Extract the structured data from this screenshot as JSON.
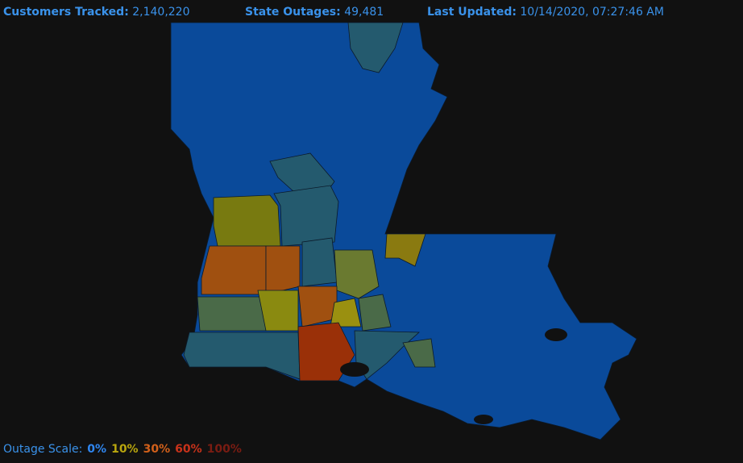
{
  "header": {
    "customers_tracked": {
      "label": "Customers Tracked:",
      "value": "2,140,220"
    },
    "state_outages": {
      "label": "State Outages:",
      "value": "49,481"
    },
    "last_updated": {
      "label": "Last Updated:",
      "value": "10/14/2020, 07:27:46 AM"
    }
  },
  "legend": {
    "title": "Outage Scale:",
    "levels": [
      {
        "label": "0%",
        "color": "#2f86f0"
      },
      {
        "label": "10%",
        "color": "#b9a60e"
      },
      {
        "label": "30%",
        "color": "#d2601a"
      },
      {
        "label": "60%",
        "color": "#c8321a"
      },
      {
        "label": "100%",
        "color": "#7a1c12"
      }
    ]
  }
}
